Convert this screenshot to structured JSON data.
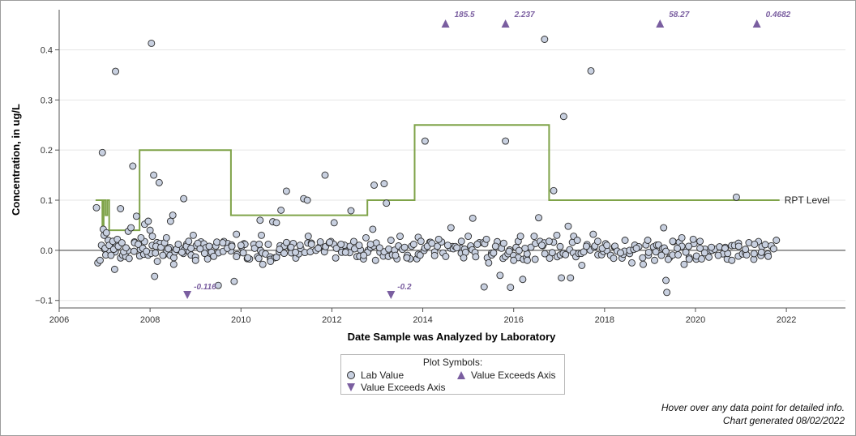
{
  "chart_data": {
    "type": "scatter",
    "xlabel": "Date Sample was Analyzed by Laboratory",
    "ylabel": "Concentration, in ug/L",
    "xlim": [
      2006,
      2023.3
    ],
    "ylim": [
      -0.115,
      0.48
    ],
    "x_ticks": [
      "2006",
      "2008",
      "2010",
      "2012",
      "2014",
      "2016",
      "2018",
      "2020",
      "2022"
    ],
    "y_ticks": [
      "−0.1",
      "0.0",
      "0.1",
      "0.2",
      "0.3",
      "0.4"
    ],
    "zero_line": 0.0,
    "grid": "horizontal",
    "colors": {
      "marker_fill": "#c8d0e0",
      "marker_edge": "#2a2a2a",
      "rpt_line": "#7fa349",
      "exceed": "#7a5ea0",
      "zero_line": "#7a7a7a"
    },
    "lab_values": [
      [
        2006.82,
        0.085
      ],
      [
        2006.85,
        -0.025
      ],
      [
        2006.9,
        -0.02
      ],
      [
        2006.93,
        0.01
      ],
      [
        2006.95,
        0.195
      ],
      [
        2006.97,
        0.042
      ],
      [
        2006.99,
        0.03
      ],
      [
        2007.01,
        0.004
      ],
      [
        2007.04,
        0.035
      ],
      [
        2007.08,
        0.02
      ],
      [
        2007.1,
        0.01
      ],
      [
        2007.14,
        -0.01
      ],
      [
        2007.18,
        0.018
      ],
      [
        2007.2,
        0.002
      ],
      [
        2007.22,
        -0.038
      ],
      [
        2007.24,
        0.357
      ],
      [
        2007.28,
        0.022
      ],
      [
        2007.3,
        0.008
      ],
      [
        2007.35,
        0.083
      ],
      [
        2007.38,
        0.015
      ],
      [
        2007.42,
        -0.003
      ],
      [
        2007.47,
        0.005
      ],
      [
        2007.52,
        0.038
      ],
      [
        2007.58,
        0.045
      ],
      [
        2007.62,
        0.168
      ],
      [
        2007.66,
        0.015
      ],
      [
        2007.7,
        0.068
      ],
      [
        2007.74,
        0.012
      ],
      [
        2007.8,
        0.025
      ],
      [
        2007.84,
        0.004
      ],
      [
        2007.88,
        0.052
      ],
      [
        2007.92,
        -0.002
      ],
      [
        2007.96,
        0.058
      ],
      [
        2008.0,
        0.04
      ],
      [
        2008.03,
        0.413
      ],
      [
        2008.05,
        0.028
      ],
      [
        2008.08,
        0.15
      ],
      [
        2008.1,
        -0.052
      ],
      [
        2008.13,
        0.008
      ],
      [
        2008.16,
        -0.022
      ],
      [
        2008.2,
        0.135
      ],
      [
        2008.24,
        0.006
      ],
      [
        2008.28,
        -0.01
      ],
      [
        2008.32,
        0.015
      ],
      [
        2008.36,
        0.025
      ],
      [
        2008.4,
        0.003
      ],
      [
        2008.45,
        0.058
      ],
      [
        2008.5,
        0.07
      ],
      [
        2008.52,
        -0.028
      ],
      [
        2008.58,
        0.002
      ],
      [
        2008.62,
        0.012
      ],
      [
        2008.7,
        -0.004
      ],
      [
        2008.74,
        0.103
      ],
      [
        2008.8,
        0.008
      ],
      [
        2008.85,
        0.018
      ],
      [
        2008.9,
        0.004
      ],
      [
        2008.95,
        0.03
      ],
      [
        2009.0,
        -0.02
      ],
      [
        2009.05,
        0.014
      ],
      [
        2009.1,
        0.003
      ],
      [
        2009.2,
        -0.006
      ],
      [
        2009.3,
        0.008
      ],
      [
        2009.4,
        -0.012
      ],
      [
        2009.5,
        -0.07
      ],
      [
        2009.6,
        0.015
      ],
      [
        2009.7,
        0.004
      ],
      [
        2009.8,
        0.008
      ],
      [
        2009.85,
        -0.062
      ],
      [
        2009.9,
        0.032
      ],
      [
        2010.0,
        0.01
      ],
      [
        2010.05,
        -0.005
      ],
      [
        2010.15,
        -0.015
      ],
      [
        2010.3,
        0.004
      ],
      [
        2010.4,
        0.012
      ],
      [
        2010.42,
        0.06
      ],
      [
        2010.45,
        0.03
      ],
      [
        2010.48,
        -0.028
      ],
      [
        2010.6,
        0.012
      ],
      [
        2010.65,
        -0.022
      ],
      [
        2010.7,
        0.057
      ],
      [
        2010.78,
        0.055
      ],
      [
        2010.85,
        0.002
      ],
      [
        2010.88,
        0.08
      ],
      [
        2010.95,
        -0.006
      ],
      [
        2011.0,
        0.118
      ],
      [
        2011.1,
        0.006
      ],
      [
        2011.2,
        -0.004
      ],
      [
        2011.3,
        0.01
      ],
      [
        2011.38,
        0.103
      ],
      [
        2011.46,
        0.1
      ],
      [
        2011.48,
        0.028
      ],
      [
        2011.55,
        0.012
      ],
      [
        2011.7,
        0.004
      ],
      [
        2011.85,
        0.15
      ],
      [
        2011.95,
        0.016
      ],
      [
        2012.05,
        0.055
      ],
      [
        2012.1,
        0.004
      ],
      [
        2012.2,
        0.012
      ],
      [
        2012.3,
        -0.004
      ],
      [
        2012.42,
        0.079
      ],
      [
        2012.5,
        0.003
      ],
      [
        2012.6,
        0.01
      ],
      [
        2012.7,
        -0.01
      ],
      [
        2012.75,
        0.025
      ],
      [
        2012.85,
        0.012
      ],
      [
        2012.9,
        0.042
      ],
      [
        2012.93,
        0.13
      ],
      [
        2012.96,
        -0.02
      ],
      [
        2013.05,
        0.005
      ],
      [
        2013.15,
        0.133
      ],
      [
        2013.2,
        0.094
      ],
      [
        2013.3,
        0.02
      ],
      [
        2013.4,
        -0.01
      ],
      [
        2013.5,
        0.028
      ],
      [
        2013.6,
        0.006
      ],
      [
        2013.65,
        -0.015
      ],
      [
        2013.8,
        0.012
      ],
      [
        2013.9,
        0.026
      ],
      [
        2013.96,
        0.018
      ],
      [
        2014.05,
        0.218
      ],
      [
        2014.1,
        0.008
      ],
      [
        2014.2,
        0.014
      ],
      [
        2014.35,
        0.022
      ],
      [
        2014.55,
        0.01
      ],
      [
        2014.62,
        0.045
      ],
      [
        2014.75,
        0.005
      ],
      [
        2014.85,
        0.018
      ],
      [
        2014.9,
        -0.015
      ],
      [
        2015.0,
        0.028
      ],
      [
        2015.1,
        0.064
      ],
      [
        2015.2,
        0.012
      ],
      [
        2015.35,
        -0.073
      ],
      [
        2015.4,
        0.022
      ],
      [
        2015.45,
        -0.025
      ],
      [
        2015.6,
        0.008
      ],
      [
        2015.7,
        -0.05
      ],
      [
        2015.78,
        0.014
      ],
      [
        2015.82,
        0.218
      ],
      [
        2015.9,
        -0.002
      ],
      [
        2015.93,
        -0.074
      ],
      [
        2016.0,
        -0.02
      ],
      [
        2016.1,
        0.018
      ],
      [
        2016.15,
        0.028
      ],
      [
        2016.2,
        -0.058
      ],
      [
        2016.25,
        0.004
      ],
      [
        2016.3,
        -0.02
      ],
      [
        2016.45,
        0.028
      ],
      [
        2016.55,
        0.065
      ],
      [
        2016.62,
        0.01
      ],
      [
        2016.68,
        0.421
      ],
      [
        2016.78,
        0.018
      ],
      [
        2016.88,
        0.119
      ],
      [
        2016.95,
        0.03
      ],
      [
        2017.05,
        -0.055
      ],
      [
        2017.1,
        0.267
      ],
      [
        2017.2,
        0.048
      ],
      [
        2017.25,
        -0.055
      ],
      [
        2017.32,
        0.028
      ],
      [
        2017.4,
        0.02
      ],
      [
        2017.5,
        -0.03
      ],
      [
        2017.6,
        0.008
      ],
      [
        2017.7,
        0.358
      ],
      [
        2017.75,
        0.032
      ],
      [
        2017.85,
        0.018
      ],
      [
        2017.95,
        0.004
      ],
      [
        2018.05,
        0.01
      ],
      [
        2018.2,
        -0.016
      ],
      [
        2018.35,
        -0.005
      ],
      [
        2018.45,
        0.02
      ],
      [
        2018.6,
        -0.025
      ],
      [
        2018.7,
        0.004
      ],
      [
        2018.85,
        -0.028
      ],
      [
        2018.95,
        0.02
      ],
      [
        2019.1,
        -0.02
      ],
      [
        2019.25,
        -0.01
      ],
      [
        2019.3,
        0.045
      ],
      [
        2019.35,
        -0.06
      ],
      [
        2019.37,
        -0.084
      ],
      [
        2019.4,
        -0.018
      ],
      [
        2019.5,
        0.018
      ],
      [
        2019.6,
        0.004
      ],
      [
        2019.7,
        0.025
      ],
      [
        2019.75,
        -0.028
      ],
      [
        2019.85,
        0.008
      ],
      [
        2019.95,
        0.022
      ],
      [
        2020.1,
        0.004
      ],
      [
        2020.2,
        -0.005
      ],
      [
        2020.35,
        0.006
      ],
      [
        2020.5,
        -0.01
      ],
      [
        2020.65,
        0.004
      ],
      [
        2020.8,
        -0.02
      ],
      [
        2020.9,
        0.106
      ],
      [
        2020.95,
        0.008
      ],
      [
        2021.1,
        0.002
      ],
      [
        2021.3,
        0.012
      ],
      [
        2021.45,
        -0.004
      ],
      [
        2021.6,
        -0.012
      ],
      [
        2021.72,
        0.003
      ],
      [
        2021.78,
        0.02
      ]
    ],
    "dense_band": {
      "x_start": 2007.0,
      "x_end": 2021.7,
      "y_min": -0.018,
      "y_max": 0.018,
      "count": 260,
      "seed": 7
    },
    "rpt_level": {
      "name": "RPT Level",
      "points": [
        [
          2006.8,
          0.1
        ],
        [
          2006.95,
          0.1
        ],
        [
          2006.95,
          0.04
        ],
        [
          2006.98,
          0.04
        ],
        [
          2006.98,
          0.1
        ],
        [
          2007.02,
          0.1
        ],
        [
          2007.02,
          0.07
        ],
        [
          2007.06,
          0.07
        ],
        [
          2007.06,
          0.1
        ],
        [
          2007.1,
          0.1
        ],
        [
          2007.1,
          0.04
        ],
        [
          2007.77,
          0.04
        ],
        [
          2007.77,
          0.2
        ],
        [
          2009.78,
          0.2
        ],
        [
          2009.78,
          0.07
        ],
        [
          2012.78,
          0.07
        ],
        [
          2012.78,
          0.1
        ],
        [
          2013.82,
          0.1
        ],
        [
          2013.82,
          0.25
        ],
        [
          2016.78,
          0.25
        ],
        [
          2016.78,
          0.1
        ],
        [
          2021.85,
          0.1
        ]
      ]
    },
    "exceeds_high": [
      {
        "x": 2014.5,
        "label": "185.5"
      },
      {
        "x": 2015.82,
        "label": "2.237"
      },
      {
        "x": 2019.22,
        "label": "58.27"
      },
      {
        "x": 2021.35,
        "label": "0.4682"
      }
    ],
    "exceeds_low": [
      {
        "x": 2008.82,
        "label": "-0.116"
      },
      {
        "x": 2013.3,
        "label": "-0.2"
      }
    ]
  },
  "legend": {
    "title": "Plot Symbols:",
    "items": [
      {
        "symbol": "circle",
        "label": "Lab Value"
      },
      {
        "symbol": "triangle-up",
        "label": "Value Exceeds Axis"
      },
      {
        "symbol": "triangle-down",
        "label": "Value Exceeds Axis"
      }
    ]
  },
  "footer": {
    "hover_note": "Hover over any data point for detailed info.",
    "generated": "Chart generated 08/02/2022"
  }
}
